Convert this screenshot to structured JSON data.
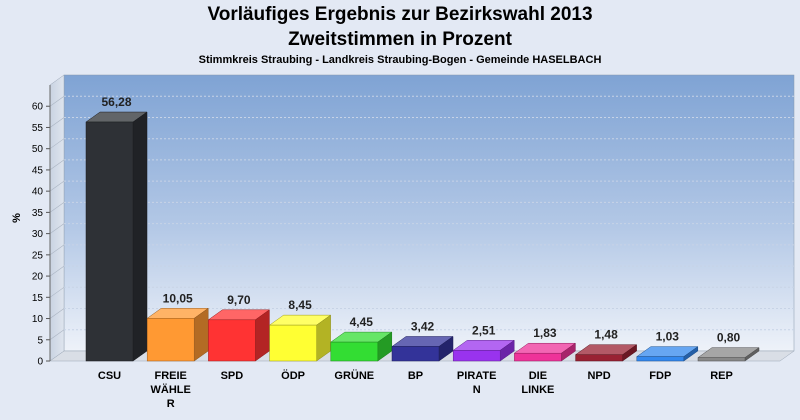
{
  "header": {
    "title_line1": "Vorläufiges Ergebnis zur Bezirkswahl 2013",
    "title_line2": "Zweitstimmen in Prozent",
    "subtitle": "Stimmkreis Straubing - Landkreis Straubing-Bogen - Gemeinde HASELBACH"
  },
  "chart_data": {
    "type": "bar",
    "title": "Vorläufiges Ergebnis zur Bezirkswahl 2013 Zweitstimmen in Prozent",
    "subtitle": "Stimmkreis Straubing - Landkreis Straubing-Bogen - Gemeinde HASELBACH",
    "xlabel": "",
    "ylabel": "%",
    "ylim": [
      0,
      65
    ],
    "yticks": [
      0,
      5,
      10,
      15,
      20,
      25,
      30,
      35,
      40,
      45,
      50,
      55,
      60
    ],
    "grid": true,
    "categories": [
      "CSU",
      "FREIE WÄHLER",
      "SPD",
      "ÖDP",
      "GRÜNE",
      "BP",
      "PIRATEN",
      "DIE LINKE",
      "NPD",
      "FDP",
      "REP"
    ],
    "category_labels": [
      [
        "CSU"
      ],
      [
        "FREIE",
        "WÄHLE",
        "R"
      ],
      [
        "SPD"
      ],
      [
        "ÖDP"
      ],
      [
        "GRÜNE"
      ],
      [
        "BP"
      ],
      [
        "PIRATE",
        "N"
      ],
      [
        "DIE",
        "LINKE"
      ],
      [
        "NPD"
      ],
      [
        "FDP"
      ],
      [
        "REP"
      ]
    ],
    "values": [
      56.28,
      10.05,
      9.7,
      8.45,
      4.45,
      3.42,
      2.51,
      1.83,
      1.48,
      1.03,
      0.8
    ],
    "value_labels": [
      "56,28",
      "10,05",
      "9,70",
      "8,45",
      "4,45",
      "3,42",
      "2,51",
      "1,83",
      "1,48",
      "1,03",
      "0,80"
    ],
    "colors": [
      "#2e3136",
      "#ff9933",
      "#ff3333",
      "#ffff33",
      "#33dd33",
      "#333399",
      "#9933ee",
      "#ee3399",
      "#992233",
      "#3388ee",
      "#888888"
    ]
  }
}
